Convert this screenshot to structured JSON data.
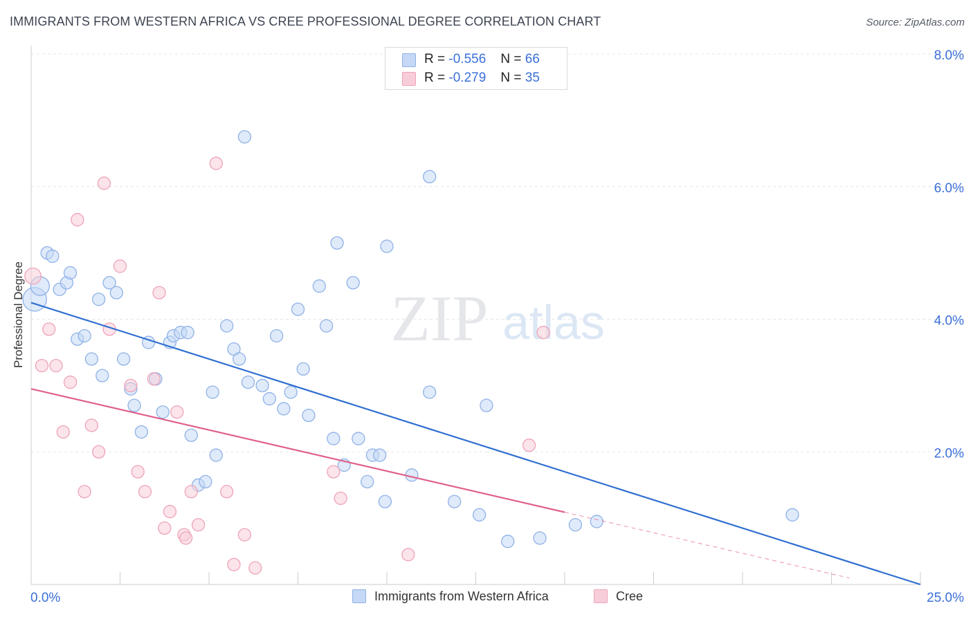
{
  "header": {
    "title": "IMMIGRANTS FROM WESTERN AFRICA VS CREE PROFESSIONAL DEGREE CORRELATION CHART",
    "source": "Source: ZipAtlas.com"
  },
  "watermark": {
    "zip": "ZIP",
    "atlas": "atlas"
  },
  "legend": {
    "rows": [
      {
        "r_label": "R =",
        "r_value": "-0.556",
        "n_label": "N =",
        "n_value": "66"
      },
      {
        "r_label": "R =",
        "r_value": "-0.279",
        "n_label": "N =",
        "n_value": "35"
      }
    ]
  },
  "colors": {
    "blue_fill": "#c5d8f5",
    "blue_stroke": "#8fb2e6",
    "blue_line": "#2f6fd0",
    "pink_fill": "#f7cdd9",
    "pink_stroke": "#eea3b8",
    "pink_line": "#e0608b",
    "axis_text": "#3a6fd8",
    "grid": "#e3e6ea"
  },
  "chart_data": {
    "type": "scatter",
    "title": "IMMIGRANTS FROM WESTERN AFRICA VS CREE PROFESSIONAL DEGREE CORRELATION CHART",
    "xlabel": "",
    "ylabel": "Professional Degree",
    "xlim": [
      0,
      25
    ],
    "ylim": [
      0,
      8.0
    ],
    "x_tick_labels": [
      "0.0%",
      "25.0%"
    ],
    "y_ticks": [
      2.0,
      4.0,
      6.0,
      8.0
    ],
    "y_tick_labels": [
      "2.0%",
      "4.0%",
      "6.0%",
      "8.0%"
    ],
    "grid": true,
    "legend_position": "bottom",
    "series": [
      {
        "name": "Immigrants from Western Africa",
        "color": "#8fb2e6",
        "points": [
          [
            0.1,
            4.3,
            1.9
          ],
          [
            0.25,
            4.5,
            1.5
          ],
          [
            0.45,
            5.0,
            1
          ],
          [
            0.6,
            4.95,
            1
          ],
          [
            0.8,
            4.45,
            1
          ],
          [
            1.0,
            4.55,
            1
          ],
          [
            1.1,
            4.7,
            1
          ],
          [
            1.3,
            3.7,
            1
          ],
          [
            1.5,
            3.75,
            1
          ],
          [
            1.7,
            3.4,
            1
          ],
          [
            1.9,
            4.3,
            1
          ],
          [
            2.0,
            3.15,
            1
          ],
          [
            2.2,
            4.55,
            1
          ],
          [
            2.4,
            4.4,
            1
          ],
          [
            2.6,
            3.4,
            1
          ],
          [
            2.8,
            2.95,
            1
          ],
          [
            2.9,
            2.7,
            1
          ],
          [
            3.1,
            2.3,
            1
          ],
          [
            3.3,
            3.65,
            1
          ],
          [
            3.5,
            3.1,
            1
          ],
          [
            3.7,
            2.6,
            1
          ],
          [
            3.9,
            3.65,
            1
          ],
          [
            4.0,
            3.75,
            1
          ],
          [
            4.2,
            3.8,
            1
          ],
          [
            4.4,
            3.8,
            1
          ],
          [
            4.5,
            2.25,
            1
          ],
          [
            4.7,
            1.5,
            1
          ],
          [
            4.9,
            1.55,
            1
          ],
          [
            5.1,
            2.9,
            1
          ],
          [
            5.2,
            1.95,
            1
          ],
          [
            5.5,
            3.9,
            1
          ],
          [
            5.7,
            3.55,
            1
          ],
          [
            5.85,
            3.4,
            1
          ],
          [
            6.1,
            3.05,
            1
          ],
          [
            6.0,
            6.75,
            1
          ],
          [
            6.5,
            3.0,
            1
          ],
          [
            6.7,
            2.8,
            1
          ],
          [
            6.9,
            3.75,
            1
          ],
          [
            7.1,
            2.65,
            1
          ],
          [
            7.3,
            2.9,
            1
          ],
          [
            7.5,
            4.15,
            1
          ],
          [
            7.65,
            3.25,
            1
          ],
          [
            7.8,
            2.55,
            1
          ],
          [
            8.1,
            4.5,
            1
          ],
          [
            8.3,
            3.9,
            1
          ],
          [
            8.5,
            2.2,
            1
          ],
          [
            8.6,
            5.15,
            1
          ],
          [
            8.8,
            1.8,
            1
          ],
          [
            9.05,
            4.55,
            1
          ],
          [
            9.2,
            2.2,
            1
          ],
          [
            9.45,
            1.55,
            1
          ],
          [
            9.6,
            1.95,
            1
          ],
          [
            9.8,
            1.95,
            1
          ],
          [
            9.95,
            1.25,
            1
          ],
          [
            10.0,
            5.1,
            1
          ],
          [
            10.7,
            1.65,
            1
          ],
          [
            11.2,
            2.9,
            1
          ],
          [
            11.2,
            6.15,
            1
          ],
          [
            11.9,
            1.25,
            1
          ],
          [
            12.6,
            1.05,
            1
          ],
          [
            12.8,
            2.7,
            1
          ],
          [
            13.4,
            0.65,
            1
          ],
          [
            14.3,
            0.7,
            1
          ],
          [
            15.3,
            0.9,
            1
          ],
          [
            15.9,
            0.95,
            1
          ],
          [
            21.4,
            1.05,
            1
          ]
        ]
      },
      {
        "name": "Cree",
        "color": "#eea3b8",
        "points": [
          [
            0.05,
            4.65,
            1.3
          ],
          [
            0.3,
            3.3,
            1
          ],
          [
            0.5,
            3.85,
            1
          ],
          [
            0.7,
            3.3,
            1
          ],
          [
            0.9,
            2.3,
            1
          ],
          [
            1.1,
            3.05,
            1
          ],
          [
            1.3,
            5.5,
            1
          ],
          [
            1.5,
            1.4,
            1
          ],
          [
            1.7,
            2.4,
            1
          ],
          [
            1.9,
            2.0,
            1
          ],
          [
            2.05,
            6.05,
            1
          ],
          [
            2.2,
            3.85,
            1
          ],
          [
            2.5,
            4.8,
            1
          ],
          [
            2.8,
            3.0,
            1
          ],
          [
            3.0,
            1.7,
            1
          ],
          [
            3.2,
            1.4,
            1
          ],
          [
            3.45,
            3.1,
            1
          ],
          [
            3.6,
            4.4,
            1
          ],
          [
            3.75,
            0.85,
            1
          ],
          [
            3.9,
            1.1,
            1
          ],
          [
            4.1,
            2.6,
            1
          ],
          [
            4.3,
            0.75,
            1
          ],
          [
            4.35,
            0.7,
            1
          ],
          [
            4.5,
            1.4,
            1
          ],
          [
            4.7,
            0.9,
            1
          ],
          [
            5.2,
            6.35,
            1
          ],
          [
            5.5,
            1.4,
            1
          ],
          [
            5.7,
            0.3,
            1
          ],
          [
            6.0,
            0.75,
            1
          ],
          [
            6.3,
            0.25,
            1
          ],
          [
            8.5,
            1.7,
            1
          ],
          [
            8.7,
            1.3,
            1
          ],
          [
            10.6,
            0.45,
            1
          ],
          [
            14.0,
            2.1,
            1
          ],
          [
            14.4,
            3.8,
            1
          ]
        ]
      }
    ],
    "trendlines": [
      {
        "series": "Immigrants from Western Africa",
        "x0": 0,
        "y0": 4.25,
        "x1": 25,
        "y1": 0.0,
        "dashed_from": null
      },
      {
        "series": "Cree",
        "x0": 0,
        "y0": 2.95,
        "x1": 25,
        "y1": -0.15,
        "solid_until": 15.0
      }
    ]
  },
  "bottom_legend": {
    "items": [
      {
        "label": "Immigrants from Western Africa"
      },
      {
        "label": "Cree"
      }
    ]
  }
}
